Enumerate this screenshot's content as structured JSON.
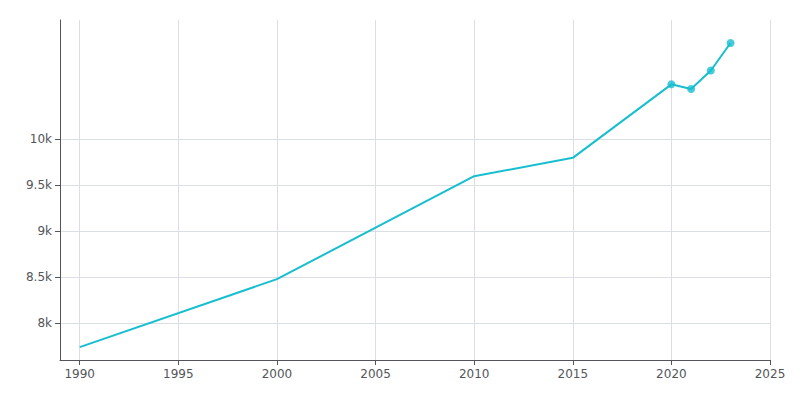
{
  "chart_data": {
    "type": "line",
    "series": [
      {
        "type": "line",
        "color": "#17becf",
        "x": [
          1990,
          2000,
          2010,
          2015,
          2020,
          2021,
          2022,
          2023
        ],
        "values": [
          7740,
          8480,
          9600,
          9800,
          10600,
          10550,
          10750,
          11050
        ]
      },
      {
        "type": "scatter",
        "color": "#17becf",
        "marker": "o",
        "x": [
          2020,
          2021,
          2022,
          2023
        ],
        "values": [
          10600,
          10550,
          10750,
          11050
        ]
      }
    ],
    "xlim": [
      1989,
      2025
    ],
    "ylim": [
      7600,
      11300
    ],
    "xticks": [
      1990,
      1995,
      2000,
      2005,
      2010,
      2015,
      2020,
      2025
    ],
    "yticks": [
      {
        "value": 8000,
        "label": "8k"
      },
      {
        "value": 8500,
        "label": "8.5k"
      },
      {
        "value": 9000,
        "label": "9k"
      },
      {
        "value": 9500,
        "label": "9.5k"
      },
      {
        "value": 10000,
        "label": "10k"
      }
    ],
    "grid": true
  }
}
